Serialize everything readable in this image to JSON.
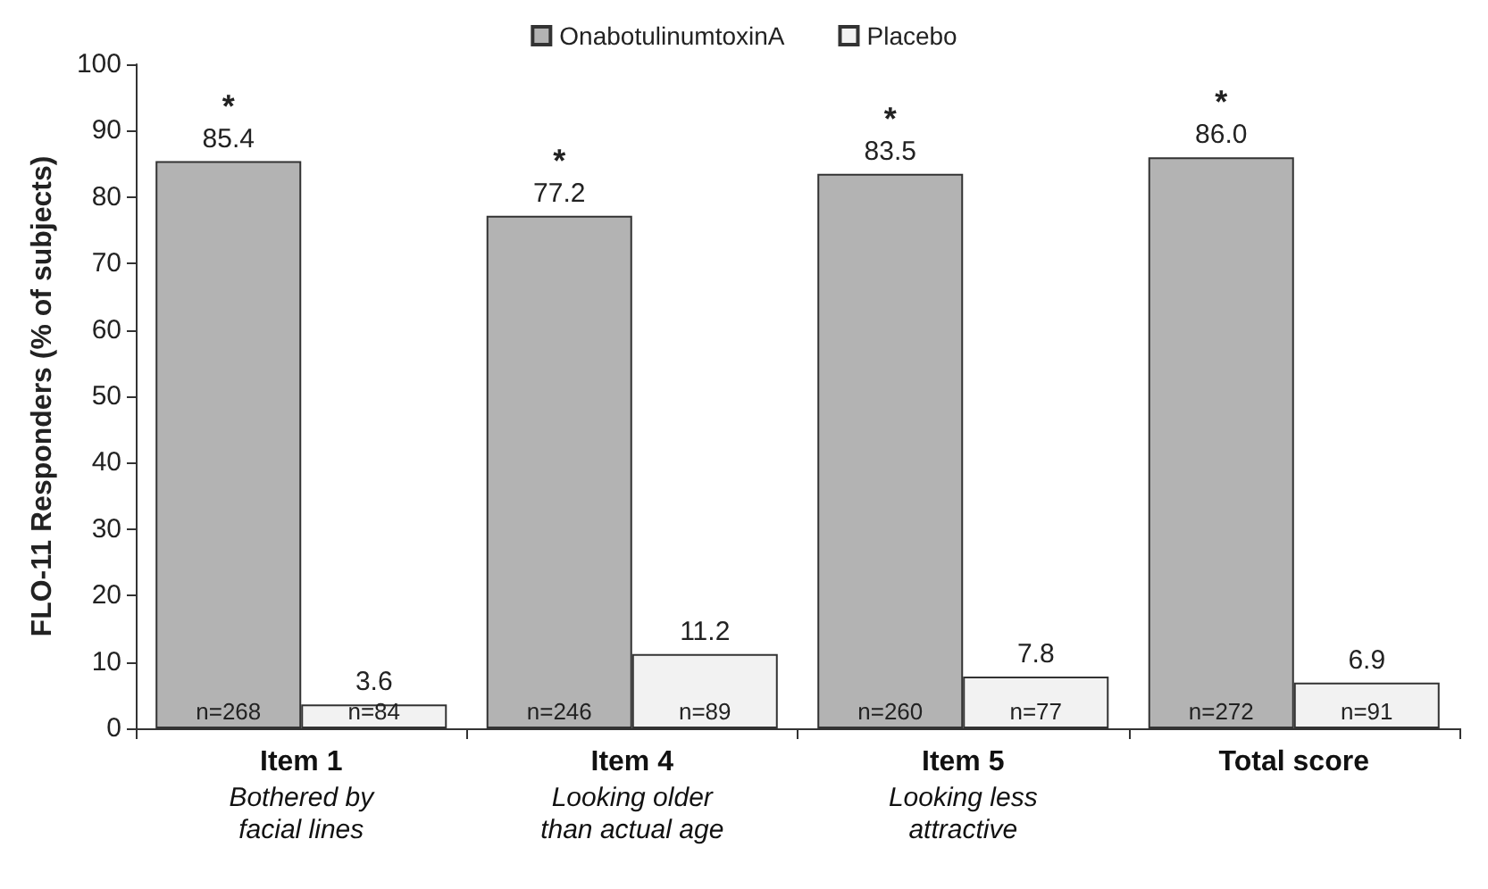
{
  "chart_data": {
    "type": "bar",
    "ylabel": "FLO-11 Responders (% of subjects)",
    "categories": [
      "Item 1\nBothered by\nfacial lines",
      "Item 4\nLooking older\nthan actual age",
      "Item 5\nLooking less\nattractive",
      "Total score"
    ],
    "series": [
      {
        "name": "OnabotulinumtoxinA",
        "color": "#b3b3b3",
        "values": [
          85.4,
          77.2,
          83.5,
          86.0
        ],
        "value_labels": [
          "85.4",
          "77.2",
          "83.5",
          "86.0"
        ]
      },
      {
        "name": "Placebo",
        "color": "#f2f2f2",
        "values": [
          3.6,
          11.2,
          7.8,
          6.9
        ],
        "value_labels": [
          "3.6",
          "11.2",
          "7.8",
          "6.9"
        ]
      }
    ],
    "ylim": [
      0,
      100
    ],
    "yticks": [
      0,
      10,
      20,
      30,
      40,
      50,
      60,
      70,
      80,
      90,
      100
    ],
    "grid": false,
    "legend": "top",
    "annotations": [
      {
        "text": "*",
        "x": "Item 1\nBothered by\nfacial lines",
        "y": 85.4
      },
      {
        "text": "*",
        "x": "Item 4\nLooking older\nthan actual age",
        "y": 77.2
      },
      {
        "text": "*",
        "x": "Item 5\nLooking less\nattractive",
        "y": 83.5
      },
      {
        "text": "*",
        "x": "Total score",
        "y": 86.0
      },
      {
        "text": "n=268",
        "x": "Item 1\nBothered by\nfacial lines",
        "y": 0
      },
      {
        "text": "n=84",
        "x": "Item 1\nBothered by\nfacial lines",
        "y": 0
      },
      {
        "text": "n=246",
        "x": "Item 4\nLooking older\nthan actual age",
        "y": 0
      },
      {
        "text": "n=89",
        "x": "Item 4\nLooking older\nthan actual age",
        "y": 0
      },
      {
        "text": "n=260",
        "x": "Item 5\nLooking less\nattractive",
        "y": 0
      },
      {
        "text": "n=77",
        "x": "Item 5\nLooking less\nattractive",
        "y": 0
      },
      {
        "text": "n=272",
        "x": "Total score",
        "y": 0
      },
      {
        "text": "n=91",
        "x": "Total score",
        "y": 0
      }
    ]
  }
}
